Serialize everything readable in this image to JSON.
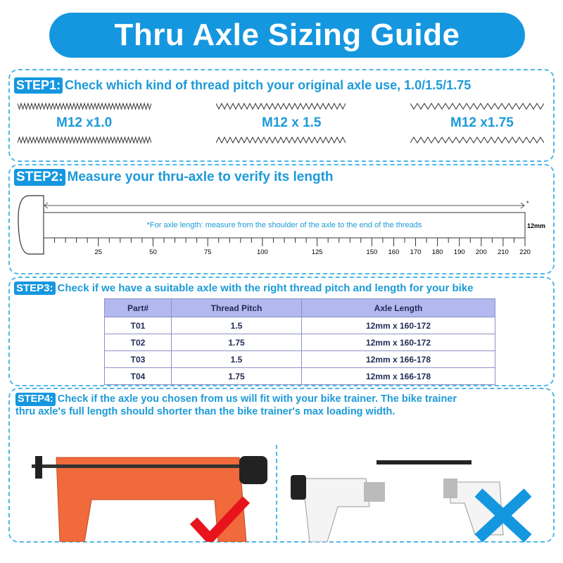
{
  "title": "Thru Axle Sizing Guide",
  "step1": {
    "badge": "STEP1:",
    "text": "Check which kind of thread pitch your original axle use, 1.0/1.5/1.75",
    "threads": [
      "M12 x1.0",
      "M12 x 1.5",
      "M12 x1.75"
    ]
  },
  "step2": {
    "badge": "STEP2:",
    "text": "Measure your thru-axle to verify its length",
    "note": "*For axle length: measure from the shoulder of the axle to the end of the threads",
    "diameter": "12mm",
    "asterisk": "*",
    "ticks": [
      25,
      50,
      75,
      100,
      125,
      150,
      160,
      170,
      180,
      190,
      200,
      210,
      220
    ],
    "max": 220
  },
  "step3": {
    "badge": "STEP3:",
    "text": "Check if we have a suitable axle with the right thread pitch and length for your bike",
    "headers": [
      "Part#",
      "Thread Pitch",
      "Axle Length"
    ],
    "rows": [
      [
        "T01",
        "1.5",
        "12mm x 160-172"
      ],
      [
        "T02",
        "1.75",
        "12mm x 160-172"
      ],
      [
        "T03",
        "1.5",
        "12mm x 166-178"
      ],
      [
        "T04",
        "1.75",
        "12mm x 166-178"
      ]
    ]
  },
  "step4": {
    "badge": "STEP4:",
    "line1": "Check if the axle you chosen from us will fit with your bike trainer. The bike trainer",
    "line2": "thru axle's full length should shorter than the bike trainer's  max loading width."
  },
  "colors": {
    "accent": "#1597e0",
    "check": "#e8141c",
    "trainer": "#f06a3c"
  }
}
